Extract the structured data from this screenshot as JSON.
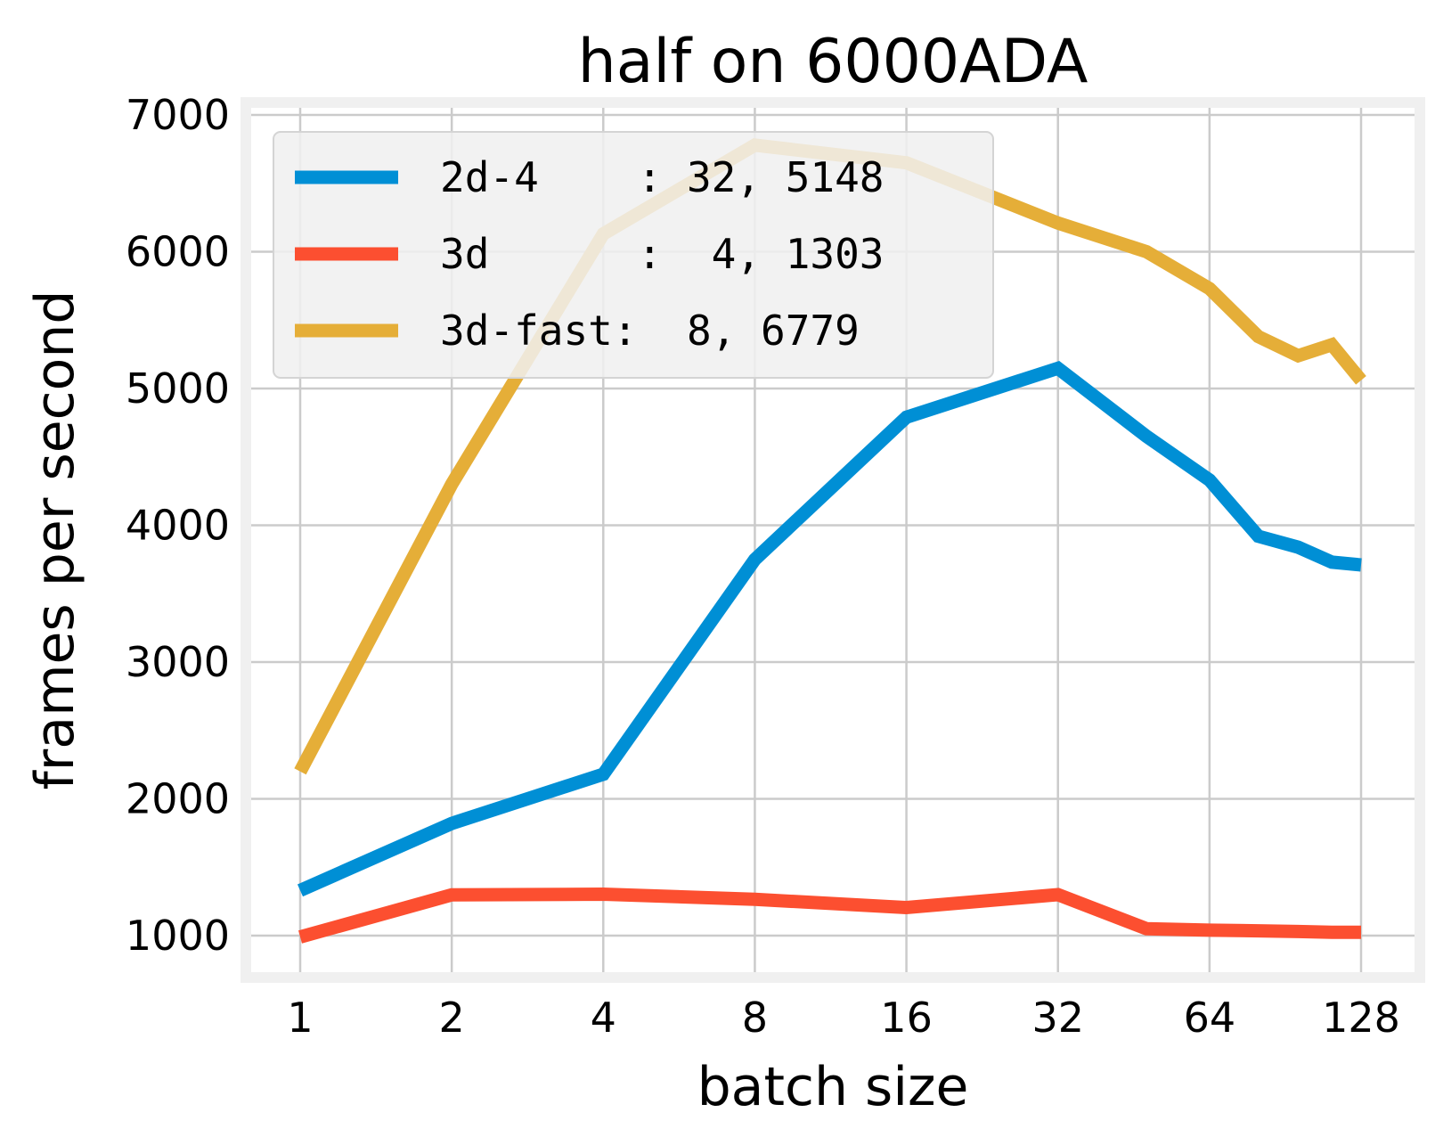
{
  "chart_data": {
    "type": "line",
    "title": "half on 6000ADA",
    "xlabel": "batch size",
    "ylabel": "frames per second",
    "x_scale": "log2",
    "xlim": [
      1,
      128
    ],
    "ylim": [
      1000,
      7000
    ],
    "x_ticks": [
      "1",
      "2",
      "4",
      "8",
      "16",
      "32",
      "64",
      "128"
    ],
    "y_ticks": [
      "1000",
      "2000",
      "3000",
      "4000",
      "5000",
      "6000",
      "7000"
    ],
    "grid": true,
    "legend_position": "top-left",
    "series": [
      {
        "name": "2d-4",
        "legend_text": "2d-4    : 32, 5148",
        "color": "#008fd5",
        "x": [
          1,
          2,
          4,
          8,
          16,
          32,
          48,
          64,
          80,
          96,
          112,
          128
        ],
        "y": [
          1330,
          1820,
          2180,
          3750,
          4790,
          5148,
          4650,
          4330,
          3920,
          3840,
          3730,
          3710
        ]
      },
      {
        "name": "3d",
        "legend_text": "3d      :  4, 1303",
        "color": "#fc4f30",
        "x": [
          1,
          2,
          4,
          8,
          16,
          32,
          48,
          64,
          80,
          96,
          112,
          128
        ],
        "y": [
          990,
          1298,
          1303,
          1265,
          1205,
          1300,
          1050,
          1040,
          1035,
          1030,
          1025,
          1025
        ]
      },
      {
        "name": "3d-fast",
        "legend_text": "3d-fast:  8, 6779",
        "color": "#e5ae38",
        "x": [
          1,
          2,
          4,
          8,
          16,
          32,
          48,
          64,
          80,
          96,
          112,
          128
        ],
        "y": [
          2200,
          4300,
          6130,
          6779,
          6650,
          6210,
          6000,
          5730,
          5380,
          5240,
          5320,
          5060
        ]
      }
    ]
  }
}
